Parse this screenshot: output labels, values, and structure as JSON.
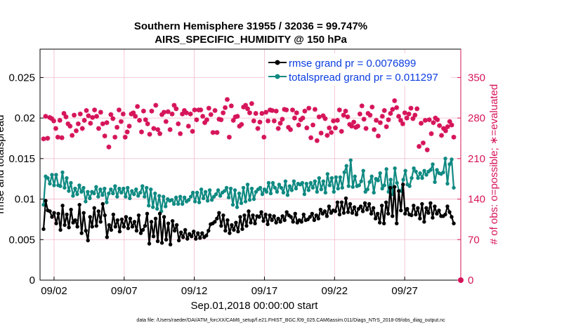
{
  "chart_data": {
    "type": "line",
    "title_line1": "Southern Hemisphere 31955 / 32036 = 99.747%",
    "title_line2": "AIRS_SPECIFIC_HUMIDITY @ 150 hPa",
    "xlabel": "Sep.01,2018 00:00:00 start",
    "ylabel_left": "rmse and totalspread",
    "ylabel_right": "# of obs: o=possible; ∗=evaluated",
    "footer": "data file: /Users/raeder/DAI/ATM_forcXX/CAM6_setup/f.e21.FHIST_BGC.f09_025.CAM6assim.011/Diags_NTrS_2018-09/obs_diag_output.nc",
    "xlim": [
      0.5,
      30.5
    ],
    "ylim_left": [
      0,
      0.0285
    ],
    "ylim_right": [
      0,
      399
    ],
    "x_ticks": [
      1.5,
      6.5,
      11.5,
      16.5,
      21.5,
      26.5
    ],
    "x_tick_labels": [
      "09/02",
      "09/07",
      "09/12",
      "09/17",
      "09/22",
      "09/27"
    ],
    "y_left_ticks": [
      0,
      0.005,
      0.01,
      0.015,
      0.02,
      0.025
    ],
    "y_left_tick_labels": [
      "0",
      "0.005",
      "0.01",
      "0.015",
      "0.02",
      "0.025"
    ],
    "y_right_ticks": [
      0,
      70,
      140,
      210,
      280,
      350
    ],
    "y_right_tick_labels": [
      "0",
      "70",
      "140",
      "210",
      "280",
      "350"
    ],
    "grid": true,
    "legend_position": "top-right",
    "colors": {
      "rmse": "#000000",
      "spread": "#0f8a82",
      "obs": "#d6145a",
      "grid": "#f2b8c8"
    },
    "series": [
      {
        "name": "rmse grand pr = 0.0076899",
        "key": "rmse",
        "values": [
          0.0063,
          0.0098,
          0.0086,
          0.0085,
          0.0078,
          0.0083,
          0.007,
          0.0082,
          0.0062,
          0.0092,
          0.0068,
          0.0081,
          0.0065,
          0.0087,
          0.0071,
          0.0074,
          0.0066,
          0.0093,
          0.0058,
          0.0083,
          0.0061,
          0.0049,
          0.0078,
          0.0066,
          0.0089,
          0.0067,
          0.0085,
          0.0072,
          0.0094,
          0.008,
          0.0053,
          0.0068,
          0.0062,
          0.0081,
          0.0066,
          0.0074,
          0.006,
          0.0075,
          0.0066,
          0.0078,
          0.0064,
          0.0076,
          0.0066,
          0.0072,
          0.0061,
          0.008,
          0.0058,
          0.0062,
          0.0067,
          0.0082,
          0.0045,
          0.0072,
          0.0054,
          0.0076,
          0.0048,
          0.0082,
          0.0046,
          0.0078,
          0.005,
          0.007,
          0.0044,
          0.0073,
          0.0061,
          0.0068,
          0.0049,
          0.0059,
          0.0053,
          0.0062,
          0.0051,
          0.0057,
          0.0054,
          0.006,
          0.0051,
          0.0058,
          0.0052,
          0.0058,
          0.0053,
          0.0055,
          0.0061,
          0.0069,
          0.007,
          0.0072,
          0.0076,
          0.0083,
          0.0067,
          0.008,
          0.0061,
          0.0074,
          0.0058,
          0.0068,
          0.0062,
          0.0071,
          0.006,
          0.0078,
          0.0063,
          0.008,
          0.0067,
          0.0085,
          0.0071,
          0.008,
          0.007,
          0.0079,
          0.0078,
          0.0084,
          0.0073,
          0.0081,
          0.0069,
          0.008,
          0.0074,
          0.0079,
          0.0071,
          0.0076,
          0.0072,
          0.0079,
          0.0074,
          0.0084,
          0.008,
          0.0078,
          0.0072,
          0.0082,
          0.0071,
          0.0074,
          0.0072,
          0.0081,
          0.0074,
          0.0075,
          0.0078,
          0.0082,
          0.0074,
          0.008,
          0.0076,
          0.0087,
          0.0082,
          0.0085,
          0.0079,
          0.0091,
          0.0083,
          0.0086,
          0.0085,
          0.0096,
          0.0081,
          0.0096,
          0.0083,
          0.0101,
          0.0084,
          0.0094,
          0.0083,
          0.009,
          0.0081,
          0.0088,
          0.0091,
          0.0085,
          0.0095,
          0.0087,
          0.0094,
          0.0082,
          0.0089,
          0.0076,
          0.0082,
          0.0071,
          0.0092,
          0.007,
          0.0096,
          0.0082,
          0.0114,
          0.0079,
          0.0115,
          0.007,
          0.011,
          0.0086,
          0.0118,
          0.0082,
          0.0088,
          0.0081,
          0.008,
          0.0092,
          0.0081,
          0.0089,
          0.0076,
          0.0094,
          0.0072,
          0.0089,
          0.0083,
          0.0095,
          0.0077,
          0.0091,
          0.0082,
          0.0086,
          0.0079,
          0.0079,
          0.0081,
          0.0091,
          0.0084,
          0.0078,
          0.007
        ]
      },
      {
        "name": "totalspread grand pr = 0.011297",
        "key": "spread",
        "values": [
          0.0093,
          0.0128,
          0.0126,
          0.0119,
          0.013,
          0.0117,
          0.013,
          0.0117,
          0.0116,
          0.0133,
          0.0114,
          0.0126,
          0.011,
          0.012,
          0.0104,
          0.0113,
          0.0106,
          0.0117,
          0.0109,
          0.0114,
          0.0097,
          0.0109,
          0.0101,
          0.0109,
          0.0107,
          0.0115,
          0.0103,
          0.0112,
          0.0105,
          0.0113,
          0.0096,
          0.0107,
          0.0112,
          0.0107,
          0.0116,
          0.0103,
          0.0113,
          0.0108,
          0.0113,
          0.0103,
          0.0114,
          0.0101,
          0.011,
          0.0106,
          0.0112,
          0.0104,
          0.0108,
          0.0116,
          0.0103,
          0.0114,
          0.0092,
          0.0112,
          0.009,
          0.0107,
          0.0088,
          0.0104,
          0.0085,
          0.0103,
          0.0091,
          0.01,
          0.0098,
          0.0099,
          0.0094,
          0.0102,
          0.0094,
          0.0103,
          0.0094,
          0.0102,
          0.0097,
          0.0099,
          0.0103,
          0.0108,
          0.0097,
          0.0108,
          0.0096,
          0.0112,
          0.0101,
          0.0109,
          0.0098,
          0.0111,
          0.0099,
          0.0103,
          0.0106,
          0.0111,
          0.0104,
          0.0108,
          0.011,
          0.0114,
          0.0102,
          0.0113,
          0.0093,
          0.0111,
          0.009,
          0.0107,
          0.0095,
          0.0114,
          0.0097,
          0.0118,
          0.0099,
          0.0113,
          0.01,
          0.0109,
          0.0112,
          0.0114,
          0.0106,
          0.0112,
          0.0109,
          0.012,
          0.0107,
          0.012,
          0.0114,
          0.0109,
          0.0118,
          0.0114,
          0.0108,
          0.0122,
          0.0105,
          0.0116,
          0.0111,
          0.0122,
          0.0113,
          0.0119,
          0.0118,
          0.012,
          0.0106,
          0.0119,
          0.0111,
          0.012,
          0.0114,
          0.0122,
          0.0109,
          0.0126,
          0.0112,
          0.0122,
          0.0108,
          0.0131,
          0.0117,
          0.0126,
          0.0109,
          0.0127,
          0.0113,
          0.0127,
          0.0114,
          0.0133,
          0.0141,
          0.0116,
          0.0148,
          0.0115,
          0.0128,
          0.0116,
          0.0117,
          0.0122,
          0.0135,
          0.0109,
          0.0112,
          0.0121,
          0.0128,
          0.0108,
          0.0125,
          0.0123,
          0.0132,
          0.0113,
          0.0117,
          0.0137,
          0.0109,
          0.0124,
          0.0106,
          0.0138,
          0.012,
          0.011,
          0.011,
          0.0124,
          0.0135,
          0.0118,
          0.0116,
          0.0126,
          0.0138,
          0.0134,
          0.0126,
          0.0132,
          0.0126,
          0.0135,
          0.013,
          0.0134,
          0.0136,
          0.0143,
          0.0121,
          0.0136,
          0.0132,
          0.0131,
          0.0133,
          0.015,
          0.0119,
          0.0143,
          0.0149,
          0.0114
        ]
      },
      {
        "name": "# of obs",
        "key": "obs",
        "values": [
          244,
          283,
          245,
          281,
          279,
          275,
          262,
          247,
          276,
          246,
          288,
          282,
          270,
          266,
          250,
          285,
          258,
          270,
          287,
          262,
          276,
          293,
          284,
          271,
          281,
          294,
          283,
          262,
          290,
          270,
          249,
          272,
          230,
          286,
          279,
          247,
          264,
          294,
          274,
          287,
          247,
          256,
          266,
          287,
          289,
          283,
          300,
          276,
          256,
          292,
          277,
          270,
          252,
          292,
          262,
          302,
          260,
          253,
          286,
          290,
          274,
          291,
          260,
          287,
          302,
          296,
          270,
          253,
          287,
          293,
          289,
          266,
          287,
          257,
          294,
          277,
          294,
          294,
          283,
          272,
          277,
          297,
          286,
          255,
          293,
          255,
          278,
          277,
          289,
          298,
          312,
          247,
          301,
          276,
          282,
          283,
          266,
          269,
          299,
          302,
          296,
          289,
          305,
          275,
          288,
          262,
          273,
          288,
          247,
          290,
          275,
          294,
          293,
          275,
          292,
          262,
          271,
          278,
          295,
          294,
          264,
          260,
          294,
          280,
          289,
          268,
          277,
          280,
          292,
          263,
          297,
          246,
          268,
          295,
          241,
          282,
          254,
          284,
          279,
          250,
          263,
          255,
          275,
          263,
          276,
          294,
          257,
          285,
          292,
          282,
          269,
          266,
          273,
          264,
          266,
          287,
          301,
          278,
          262,
          288,
          285,
          299,
          260,
          276,
          249,
          272,
          283,
          293,
          265,
          277,
          288,
          295,
          310,
          298,
          283,
          276,
          270,
          289,
          280,
          287,
          297,
          279,
          285,
          296,
          231,
          271,
          237,
          276,
          225,
          277,
          253,
          272,
          280,
          277,
          267,
          250,
          262,
          258,
          265,
          274,
          268,
          247
        ]
      }
    ]
  }
}
